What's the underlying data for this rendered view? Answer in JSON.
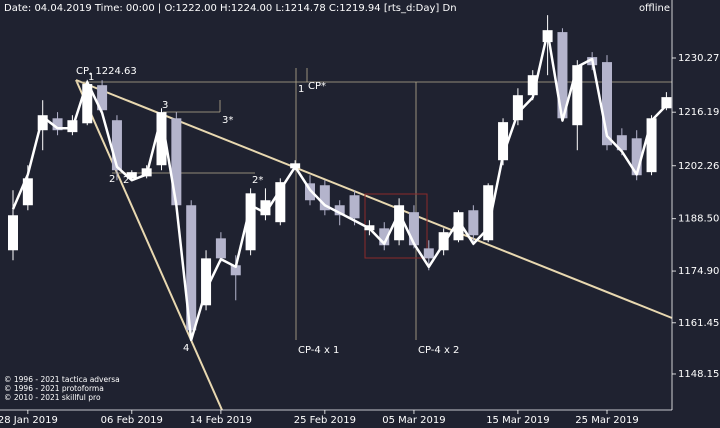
{
  "chart_data": {
    "type": "candlestick",
    "header": "Date: 04.04.2019 Time: 00:00 | O:1222.00 H:1224.00 L:1214.78 C:1219.94  [rts_d:Day] Dn",
    "status": "offline",
    "categories": [
      null,
      "28 Jan 2019",
      null,
      null,
      null,
      null,
      null,
      null,
      "06 Feb 2019",
      null,
      null,
      null,
      null,
      null,
      "14 Feb 2019",
      null,
      null,
      null,
      null,
      null,
      null,
      "25 Feb 2019",
      null,
      null,
      null,
      null,
      null,
      "05 Mar 2019",
      null,
      null,
      null,
      null,
      null,
      null,
      "15 Mar 2019",
      null,
      null,
      null,
      null,
      null,
      "25 Mar 2019",
      null,
      null,
      null,
      null
    ],
    "open": [
      1180.3,
      1192.0,
      1211.5,
      1214.6,
      1211.0,
      1213.3,
      1223.2,
      1214.1,
      1199.0,
      1199.5,
      1202.4,
      1214.6,
      1192.0,
      1166.0,
      1183.4,
      1176.4,
      1180.3,
      1189.4,
      1187.6,
      1201.6,
      1197.7,
      1197.2,
      1192.0,
      1194.6,
      1185.5,
      1186.0,
      1182.9,
      1190.2,
      1180.8,
      1180.3,
      1182.9,
      1190.7,
      1182.9,
      1203.7,
      1214.1,
      1220.6,
      1234.4,
      1237.0,
      1212.8,
      1230.5,
      1229.2,
      1210.2,
      1209.4,
      1200.6,
      1217.2
    ],
    "high": [
      1195.9,
      1202.4,
      1219.3,
      1216.2,
      1215.4,
      1224.6,
      1224.5,
      1215.4,
      1201.1,
      1202.4,
      1217.2,
      1216.2,
      1193.3,
      1180.3,
      1185.0,
      1179.0,
      1196.4,
      1196.4,
      1199.0,
      1203.7,
      1199.8,
      1198.5,
      1193.3,
      1195.9,
      1188.1,
      1187.6,
      1193.8,
      1192.0,
      1182.9,
      1186.0,
      1190.7,
      1192.0,
      1197.7,
      1214.6,
      1222.4,
      1227.1,
      1241.4,
      1238.0,
      1229.7,
      1231.8,
      1231.0,
      1212.0,
      1211.5,
      1215.4,
      1221.4
    ],
    "low": [
      1177.7,
      1190.7,
      1206.3,
      1210.2,
      1210.2,
      1212.8,
      1216.2,
      1198.5,
      1198.5,
      1199.0,
      1201.1,
      1191.2,
      1156.9,
      1164.7,
      1177.2,
      1167.3,
      1179.0,
      1188.1,
      1186.8,
      1201.1,
      1192.0,
      1189.4,
      1186.8,
      1186.8,
      1184.2,
      1180.3,
      1181.6,
      1180.8,
      1175.1,
      1179.0,
      1182.4,
      1181.6,
      1182.4,
      1202.4,
      1212.8,
      1219.3,
      1225.8,
      1214.1,
      1206.3,
      1227.1,
      1206.3,
      1205.0,
      1198.5,
      1199.8,
      1216.7
    ],
    "close": [
      1189.4,
      1199.0,
      1215.4,
      1211.5,
      1214.1,
      1223.5,
      1216.7,
      1201.1,
      1200.6,
      1201.6,
      1216.2,
      1192.0,
      1159.5,
      1178.2,
      1178.2,
      1173.8,
      1195.1,
      1193.3,
      1198.0,
      1202.9,
      1193.3,
      1190.7,
      1189.4,
      1188.6,
      1186.8,
      1181.6,
      1192.0,
      1181.6,
      1178.2,
      1185.0,
      1190.2,
      1184.2,
      1197.2,
      1213.6,
      1220.6,
      1225.8,
      1237.5,
      1214.6,
      1228.4,
      1228.4,
      1207.6,
      1206.3,
      1199.8,
      1214.6,
      1220.1
    ],
    "up_color": "#ffffff",
    "down_color": "#b4b4cc",
    "overlay_line": {
      "color": "#ffffff",
      "values": [
        1191,
        1200,
        1215,
        1212,
        1212,
        1224,
        1216,
        1202,
        1198.5,
        1200,
        1215,
        1192,
        1157,
        1170,
        1178,
        1176,
        1192,
        1190,
        1196,
        1202,
        1196,
        1192,
        1190,
        1188,
        1186,
        1182,
        1190,
        1182,
        1176,
        1182,
        1188,
        1182,
        1186,
        1205,
        1216,
        1220,
        1237,
        1214,
        1228,
        1230,
        1210,
        1206,
        1200,
        1214,
        1218
      ]
    },
    "ylim": [
      1138.79,
      1245.34
    ],
    "yticks": [
      1230.27,
      1216.19,
      1202.26,
      {
        "value": 1188.5,
        "label": "1188.50"
      },
      {
        "value": 1174.9,
        "label": "1174.90"
      },
      1161.45,
      1148.15
    ],
    "annotations": [
      "CP, 1224.63",
      "1",
      "2",
      "2",
      "3",
      "3*",
      "4",
      "2*",
      "1",
      "CP*",
      "CP-4 x 1",
      "CP-4 x 2"
    ],
    "footer": [
      "© 1996 - 2021 tactica adversa",
      "© 1996 - 2021 protoforma",
      "© 2010 - 2021 skillful pro"
    ]
  }
}
